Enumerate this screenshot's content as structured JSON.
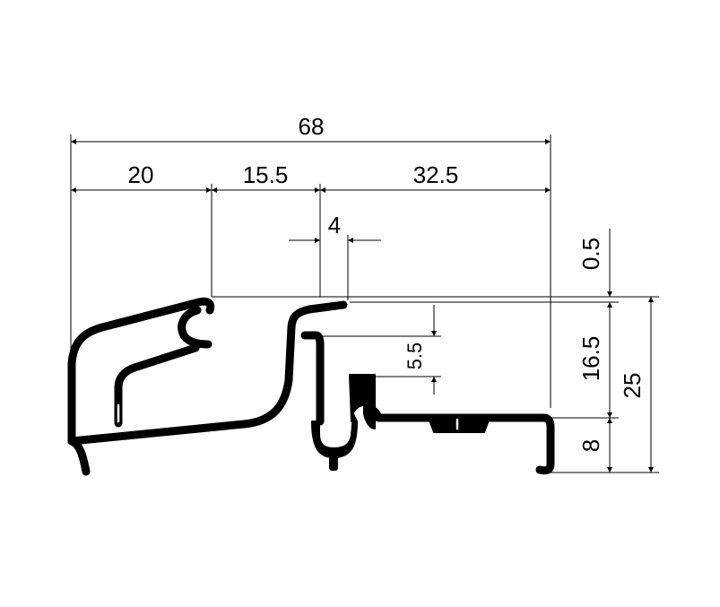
{
  "drawing": {
    "horizontal_dimensions": {
      "overall": "68",
      "seg_left": "20",
      "seg_middle": "15.5",
      "seg_right": "32.5",
      "gap": "4"
    },
    "vertical_dimensions": {
      "top_offset": "0.5",
      "upper_height": "16.5",
      "overall_height": "25",
      "lower_height": "8",
      "inner_step": "5.5"
    }
  }
}
